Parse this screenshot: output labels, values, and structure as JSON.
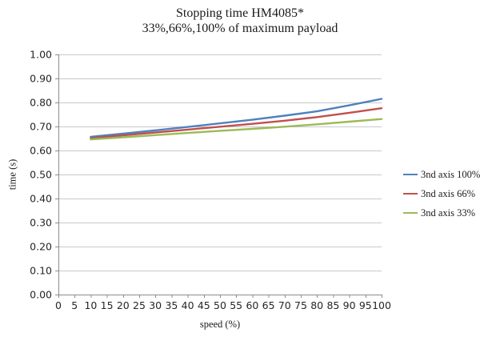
{
  "chart_data": {
    "type": "line",
    "title": "Stopping time HM4085*",
    "subtitle": "33%,66%,100% of maximum payload",
    "xlabel": "speed (%)",
    "ylabel": "time (s)",
    "xlim": [
      0,
      100
    ],
    "ylim": [
      0,
      1
    ],
    "grid": "horizontal",
    "legend_position": "right",
    "axis_color": "#8C8C8C",
    "gridline_color": "#C9C9C9",
    "x_ticks": [
      0,
      5,
      10,
      15,
      20,
      25,
      30,
      35,
      40,
      45,
      50,
      55,
      60,
      65,
      70,
      75,
      80,
      85,
      90,
      95,
      100
    ],
    "x_tick_labels": [
      "0",
      "5",
      "10",
      "15",
      "20",
      "25",
      "30",
      "35",
      "40",
      "45",
      "50",
      "55",
      "60",
      "65",
      "70",
      "75",
      "80",
      "85",
      "90",
      "95",
      "100"
    ],
    "y_ticks": [
      0,
      0.1,
      0.2,
      0.3,
      0.4,
      0.5,
      0.6,
      0.7,
      0.8,
      0.9,
      1.0
    ],
    "y_tick_labels": [
      "0.00",
      "0.10",
      "0.20",
      "0.30",
      "0.40",
      "0.50",
      "0.60",
      "0.70",
      "0.80",
      "0.90",
      "1.00"
    ],
    "x": [
      10,
      20,
      30,
      40,
      50,
      60,
      70,
      80,
      90,
      100
    ],
    "series": [
      {
        "name": "3nd axis 100%",
        "color": "#4F81BD",
        "values": [
          0.657,
          0.67,
          0.684,
          0.698,
          0.713,
          0.728,
          0.745,
          0.763,
          0.788,
          0.815
        ]
      },
      {
        "name": "3nd axis 66%",
        "color": "#C0504D",
        "values": [
          0.651,
          0.663,
          0.675,
          0.687,
          0.699,
          0.711,
          0.724,
          0.739,
          0.757,
          0.776
        ]
      },
      {
        "name": "3nd axis 33%",
        "color": "#9BBB59",
        "values": [
          0.646,
          0.655,
          0.664,
          0.673,
          0.682,
          0.69,
          0.699,
          0.709,
          0.72,
          0.731
        ]
      }
    ]
  }
}
